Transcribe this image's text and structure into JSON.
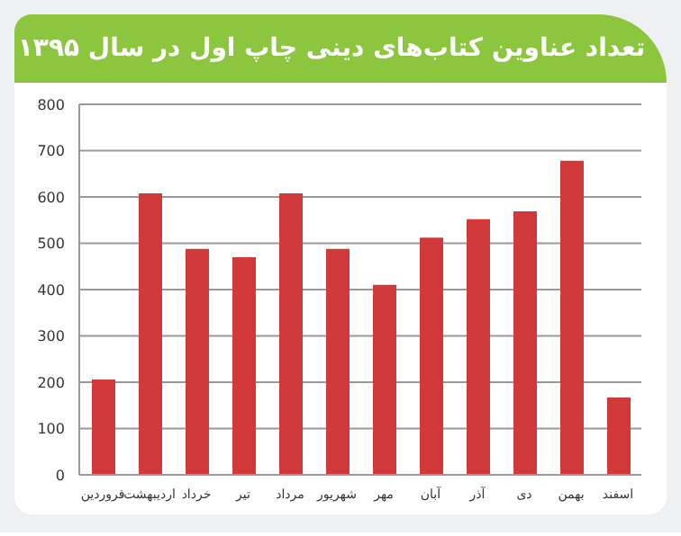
{
  "chart_data": {
    "type": "bar",
    "title": "تعداد عناوین کتاب‌های دینی چاپ اول در سال ۱۳۹۵",
    "categories": [
      "فروردین",
      "اردیبهشت",
      "خرداد",
      "تیر",
      "مرداد",
      "شهریور",
      "مهر",
      "آبان",
      "آذر",
      "دی",
      "بهمن",
      "اسفند"
    ],
    "values": [
      206,
      608,
      488,
      470,
      608,
      488,
      410,
      512,
      552,
      569,
      678,
      167
    ],
    "color": "#d0383a",
    "ylim": [
      0,
      800
    ],
    "yticks": [
      0,
      100,
      200,
      300,
      400,
      500,
      600,
      700,
      800
    ],
    "grid": "y"
  }
}
